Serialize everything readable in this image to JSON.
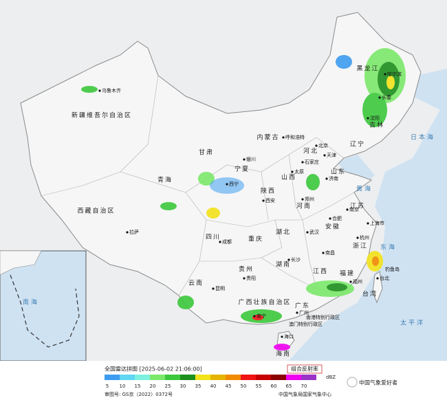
{
  "map": {
    "provinces": [
      "新疆维吾尔自治区",
      "西藏自治区",
      "青海",
      "甘肃",
      "内蒙古",
      "黑龙江",
      "吉林",
      "辽宁",
      "河北",
      "山西",
      "陕西",
      "宁夏",
      "四川",
      "重庆",
      "云南",
      "贵州",
      "广西壮族自治区",
      "广东",
      "湖南",
      "湖北",
      "河南",
      "山东",
      "江苏",
      "安徽",
      "浙江",
      "江西",
      "福建",
      "台湾",
      "海南"
    ],
    "cities": [
      "乌鲁木齐",
      "拉萨",
      "西宁",
      "银川",
      "呼和浩特",
      "北京",
      "天津",
      "石家庄",
      "太原",
      "济南",
      "郑州",
      "西安",
      "成都",
      "贵阳",
      "昆明",
      "南宁",
      "广州",
      "长沙",
      "武汉",
      "南昌",
      "合肥",
      "南京",
      "上海市",
      "杭州",
      "福州",
      "台北",
      "海口",
      "沈阳",
      "长春",
      "哈尔滨"
    ],
    "seas": [
      "日本海",
      "黄海",
      "东海",
      "太平洋",
      "南海"
    ],
    "special": [
      "香港特别行政区",
      "澳门特别行政区",
      "钓鱼岛"
    ]
  },
  "footer": {
    "title": "全国雷达拼图 [2025-06-02 21:06:00]",
    "product": "组合反射率",
    "unit": "dBZ",
    "levels": [
      {
        "value": 5,
        "color": "#3d9cf0"
      },
      {
        "value": 10,
        "color": "#5fd6f2"
      },
      {
        "value": 15,
        "color": "#7ef0e0"
      },
      {
        "value": 20,
        "color": "#7be86a"
      },
      {
        "value": 25,
        "color": "#3cc83c"
      },
      {
        "value": 30,
        "color": "#1d8f1d"
      },
      {
        "value": 35,
        "color": "#f2e21a"
      },
      {
        "value": 40,
        "color": "#e5b400"
      },
      {
        "value": 45,
        "color": "#f28a00"
      },
      {
        "value": 50,
        "color": "#f01414"
      },
      {
        "value": 55,
        "color": "#c80000"
      },
      {
        "value": 60,
        "color": "#8c0000"
      },
      {
        "value": 65,
        "color": "#f000f0"
      },
      {
        "value": 70,
        "color": "#9a32c8"
      }
    ],
    "approval": "审图号: GS京（2022）0372号",
    "source": "中国气象局国家气象中心"
  },
  "watermark": "中国气象爱好者"
}
